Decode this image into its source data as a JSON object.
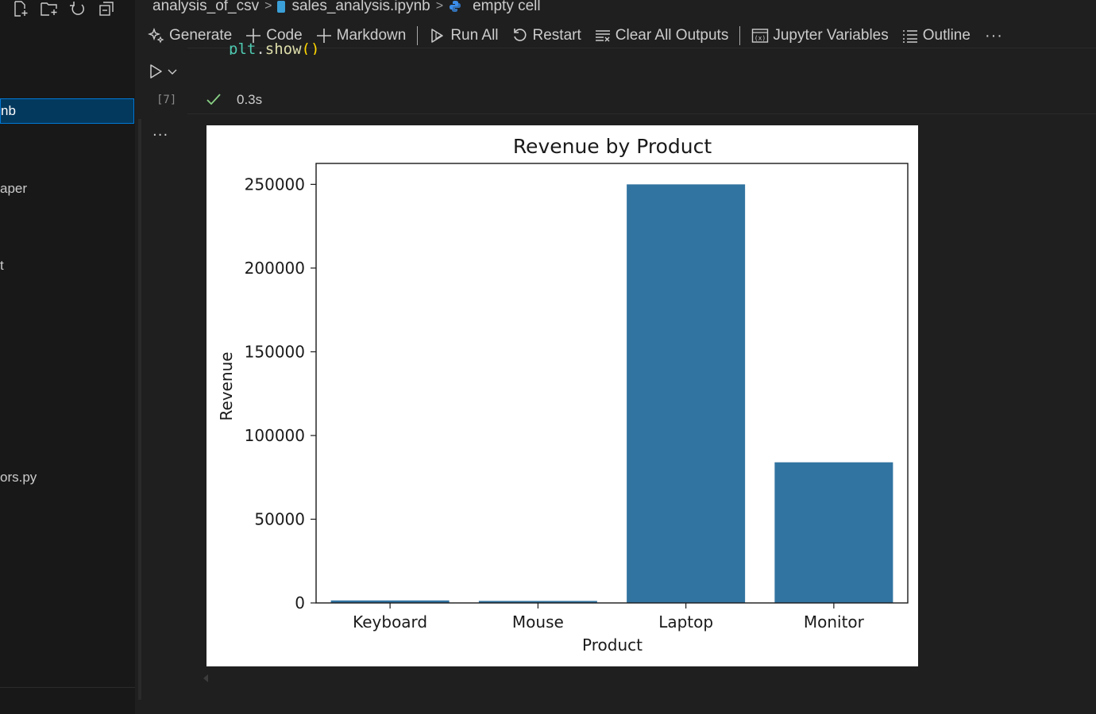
{
  "sidebar": {
    "items": [
      {
        "label": "nb",
        "selected": true
      },
      {
        "label": "aper",
        "selected": false
      },
      {
        "label": "t",
        "selected": false
      },
      {
        "label": "ors.py",
        "selected": false
      }
    ],
    "actions": [
      "new-file-icon",
      "new-folder-icon",
      "refresh-icon",
      "collapse-all-icon"
    ]
  },
  "breadcrumb": {
    "folder": "analysis_of_csv",
    "file": "sales_analysis.ipynb",
    "cell": "empty cell"
  },
  "toolbar": {
    "generate": "Generate",
    "code": "Code",
    "markdown": "Markdown",
    "run_all": "Run All",
    "restart": "Restart",
    "clear_outputs": "Clear All Outputs",
    "variables": "Jupyter Variables",
    "outline": "Outline",
    "more": "···"
  },
  "cell": {
    "code_obj": "plt",
    "code_dot": ".",
    "code_fn": "show",
    "code_parens": "()",
    "execution_count": "[7]",
    "status_time": "0.3s",
    "status_color": "#89d185",
    "output_more": "···"
  },
  "chart_data": {
    "type": "bar",
    "title": "Revenue by Product",
    "xlabel": "Product",
    "ylabel": "Revenue",
    "categories": [
      "Keyboard",
      "Mouse",
      "Laptop",
      "Monitor"
    ],
    "values": [
      1500,
      1200,
      250000,
      84000
    ],
    "ylim": [
      0,
      262500
    ],
    "yticks": [
      0,
      50000,
      100000,
      150000,
      200000,
      250000
    ],
    "bar_color": "#3274a1",
    "grid": false
  }
}
